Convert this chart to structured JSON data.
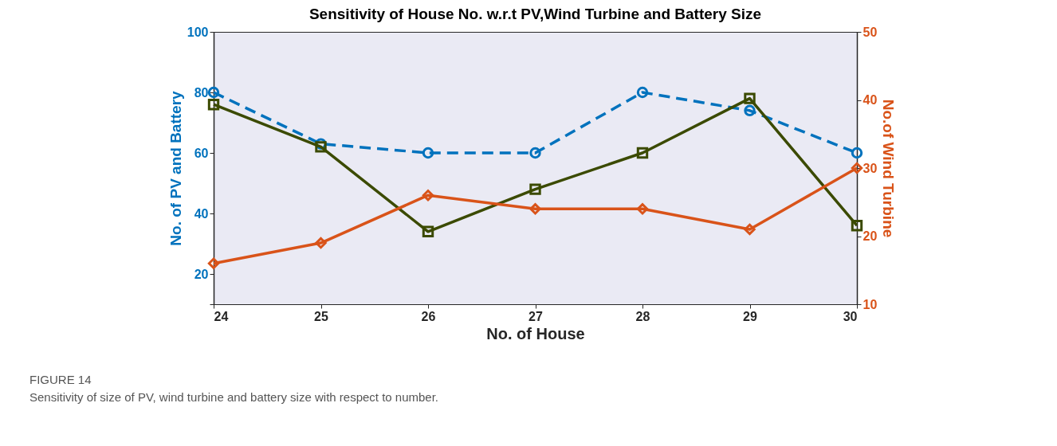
{
  "chart_data": {
    "type": "line",
    "title": "Sensitivity of House No. w.r.t PV,Wind Turbine and Battery Size",
    "xlabel": "No. of House",
    "ylabel": "No. of PV and Battery",
    "y2label": "No.of Wind Turbine",
    "x": [
      24,
      25,
      26,
      27,
      28,
      29,
      30
    ],
    "xlim": [
      24,
      30
    ],
    "xticks": [
      24,
      25,
      26,
      27,
      28,
      29,
      30
    ],
    "ylim": [
      10,
      100
    ],
    "yticks": [
      {
        "value": 10,
        "label": null
      },
      20,
      40,
      60,
      80,
      100
    ],
    "y2lim": [
      10,
      50
    ],
    "y2ticks": [
      10,
      20,
      30,
      40,
      50
    ],
    "series": [
      {
        "color": "#0072bd",
        "values": [
          80,
          63,
          60,
          60,
          80,
          74,
          60
        ],
        "marker": "circle",
        "line_style": "dashed"
      },
      {
        "color": "#3b4a00",
        "values": [
          76,
          62,
          34,
          48,
          60,
          78,
          36
        ],
        "marker": "square",
        "line_style": "solid"
      },
      {
        "color": "#d95319",
        "values": [
          16,
          19,
          26,
          24,
          24,
          21,
          30
        ],
        "marker": "diamond",
        "line_style": "solid",
        "axis": "y2"
      }
    ],
    "annotations": [
      "FIGURE 14",
      "Sensitivity of size of PV, wind turbine and battery size with respect to number."
    ]
  }
}
